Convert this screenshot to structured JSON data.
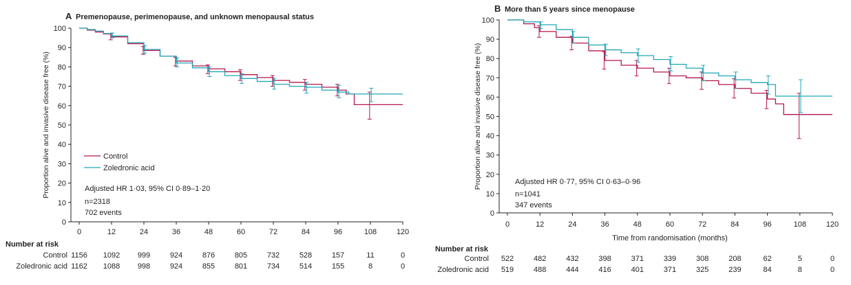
{
  "colors": {
    "control": "#b5154b",
    "zoledronic": "#1fa7b9",
    "axis": "#231f20"
  },
  "chart_data": [
    {
      "type": "line",
      "panel_letter": "A",
      "title": "Premenopause, perimenopause, and unknown menopausal status",
      "xlabel": "",
      "ylabel": "Proportion alive and invasive disease free (%)",
      "xlim": [
        0,
        120
      ],
      "ylim": [
        0,
        100
      ],
      "xticks": [
        "0",
        "12",
        "24",
        "36",
        "48",
        "60",
        "72",
        "84",
        "96",
        "108",
        "120"
      ],
      "yticks": [
        "0",
        "10",
        "20",
        "30",
        "40",
        "50",
        "60",
        "70",
        "80",
        "90",
        "100"
      ],
      "legend": {
        "position": "bottom-left",
        "items": [
          "Control",
          "Zoledronic acid"
        ]
      },
      "annotations": [
        "Adjusted HR 1·03, 95% CI 0·89–1·20",
        "n=2318",
        "702 events"
      ],
      "series": [
        {
          "name": "Control",
          "color_key": "control",
          "x": [
            0,
            3,
            6,
            9,
            12,
            18,
            24,
            30,
            36,
            42,
            48,
            54,
            60,
            66,
            72,
            78,
            84,
            90,
            96,
            99,
            102,
            108,
            120
          ],
          "y": [
            100,
            99,
            98,
            97,
            95.5,
            92,
            88.5,
            85.5,
            83,
            80.5,
            79,
            77.5,
            76,
            74.5,
            73,
            72,
            71,
            69.5,
            68,
            66,
            60.5,
            60.5,
            60.5
          ],
          "ci": [
            {
              "x": 12,
              "lo": 94,
              "hi": 97
            },
            {
              "x": 24,
              "lo": 86.5,
              "hi": 90.5
            },
            {
              "x": 36,
              "lo": 80.5,
              "hi": 85
            },
            {
              "x": 48,
              "lo": 76.5,
              "hi": 81
            },
            {
              "x": 60,
              "lo": 73,
              "hi": 78.5
            },
            {
              "x": 72,
              "lo": 70,
              "hi": 75.5
            },
            {
              "x": 84,
              "lo": 68,
              "hi": 73.5
            },
            {
              "x": 96,
              "lo": 65,
              "hi": 71
            },
            {
              "x": 108,
              "lo": 53,
              "hi": 67
            }
          ]
        },
        {
          "name": "Zoledronic acid",
          "color_key": "zoledronic",
          "x": [
            0,
            3,
            6,
            9,
            12,
            18,
            24,
            30,
            36,
            42,
            48,
            54,
            60,
            66,
            72,
            78,
            84,
            90,
            96,
            100,
            108,
            120
          ],
          "y": [
            100,
            99.3,
            98.5,
            97.2,
            96,
            92.5,
            89,
            85.5,
            82,
            79.5,
            77.5,
            75.5,
            74,
            72.5,
            71,
            70,
            69.5,
            68,
            67,
            66,
            66,
            66
          ],
          "ci": [
            {
              "x": 12,
              "lo": 95,
              "hi": 97.5
            },
            {
              "x": 24,
              "lo": 87,
              "hi": 91
            },
            {
              "x": 36,
              "lo": 80,
              "hi": 84.5
            },
            {
              "x": 48,
              "lo": 75,
              "hi": 80
            },
            {
              "x": 60,
              "lo": 71.5,
              "hi": 76.5
            },
            {
              "x": 72,
              "lo": 68.5,
              "hi": 74
            },
            {
              "x": 84,
              "lo": 66.5,
              "hi": 72
            },
            {
              "x": 96,
              "lo": 64,
              "hi": 70.5
            },
            {
              "x": 108,
              "lo": 62,
              "hi": 69
            }
          ]
        }
      ],
      "risk_table": {
        "heading": "Number at risk",
        "rows": [
          {
            "label": "Control",
            "values": [
              "1156",
              "1092",
              "999",
              "924",
              "876",
              "805",
              "732",
              "528",
              "157",
              "11",
              "0"
            ]
          },
          {
            "label": "Zoledronic acid",
            "values": [
              "1162",
              "1088",
              "998",
              "924",
              "855",
              "801",
              "734",
              "514",
              "155",
              "8",
              "0"
            ]
          }
        ]
      }
    },
    {
      "type": "line",
      "panel_letter": "B",
      "title": "More than 5 years since menopause",
      "xlabel": "Time from randomisation (months)",
      "ylabel": "Proportion alive and invasive disease free (%)",
      "xlim": [
        0,
        120
      ],
      "ylim": [
        0,
        100
      ],
      "xticks": [
        "0",
        "12",
        "24",
        "36",
        "48",
        "60",
        "72",
        "84",
        "96",
        "108",
        "120"
      ],
      "yticks": [
        "0",
        "10",
        "20",
        "30",
        "40",
        "50",
        "60",
        "70",
        "80",
        "90",
        "100"
      ],
      "annotations": [
        "Adjusted HR 0·77, 95% CI 0·63–0·96",
        "n=1041",
        "347 events"
      ],
      "series": [
        {
          "name": "Control",
          "color_key": "control",
          "x": [
            0,
            6,
            10,
            12,
            18,
            24,
            30,
            36,
            42,
            48,
            54,
            60,
            66,
            72,
            78,
            84,
            90,
            96,
            99,
            102,
            108,
            120
          ],
          "y": [
            100,
            98,
            96,
            94,
            91,
            88,
            84,
            79,
            76.5,
            75,
            73,
            71,
            70,
            68.5,
            66.5,
            64.5,
            62,
            59,
            56.5,
            51,
            51,
            51
          ],
          "ci": [
            {
              "x": 12,
              "lo": 91,
              "hi": 97
            },
            {
              "x": 24,
              "lo": 84.5,
              "hi": 91.5
            },
            {
              "x": 36,
              "lo": 74.5,
              "hi": 83.5
            },
            {
              "x": 48,
              "lo": 71,
              "hi": 79
            },
            {
              "x": 60,
              "lo": 67,
              "hi": 75
            },
            {
              "x": 72,
              "lo": 64,
              "hi": 73
            },
            {
              "x": 84,
              "lo": 59.5,
              "hi": 69.5
            },
            {
              "x": 96,
              "lo": 54,
              "hi": 63.5
            },
            {
              "x": 108,
              "lo": 38.5,
              "hi": 62
            }
          ]
        },
        {
          "name": "Zoledronic acid",
          "color_key": "zoledronic",
          "x": [
            0,
            6,
            12,
            18,
            24,
            30,
            36,
            42,
            48,
            54,
            60,
            66,
            72,
            78,
            84,
            90,
            96,
            99,
            102,
            108,
            120
          ],
          "y": [
            100,
            99,
            97.5,
            95,
            91,
            87,
            84.5,
            83,
            81.5,
            79.5,
            77,
            75,
            72.5,
            71,
            69,
            67.5,
            66.5,
            60.5,
            60.5,
            60.5,
            60.5
          ],
          "ci": [
            {
              "x": 12,
              "lo": 95.5,
              "hi": 99
            },
            {
              "x": 24,
              "lo": 88,
              "hi": 94
            },
            {
              "x": 36,
              "lo": 81.5,
              "hi": 87.5
            },
            {
              "x": 48,
              "lo": 78,
              "hi": 85
            },
            {
              "x": 60,
              "lo": 73.5,
              "hi": 81
            },
            {
              "x": 72,
              "lo": 68.5,
              "hi": 76.5
            },
            {
              "x": 84,
              "lo": 64.5,
              "hi": 73
            },
            {
              "x": 96,
              "lo": 61.5,
              "hi": 71
            },
            {
              "x": 108,
              "lo": 52,
              "hi": 69
            }
          ]
        }
      ],
      "risk_table": {
        "heading": "Number at risk",
        "rows": [
          {
            "label": "Control",
            "values": [
              "522",
              "482",
              "432",
              "398",
              "371",
              "339",
              "308",
              "208",
              "62",
              "5",
              "0"
            ]
          },
          {
            "label": "Zoledronic acid",
            "values": [
              "519",
              "488",
              "444",
              "416",
              "401",
              "371",
              "325",
              "239",
              "84",
              "8",
              "0"
            ]
          }
        ]
      }
    }
  ]
}
